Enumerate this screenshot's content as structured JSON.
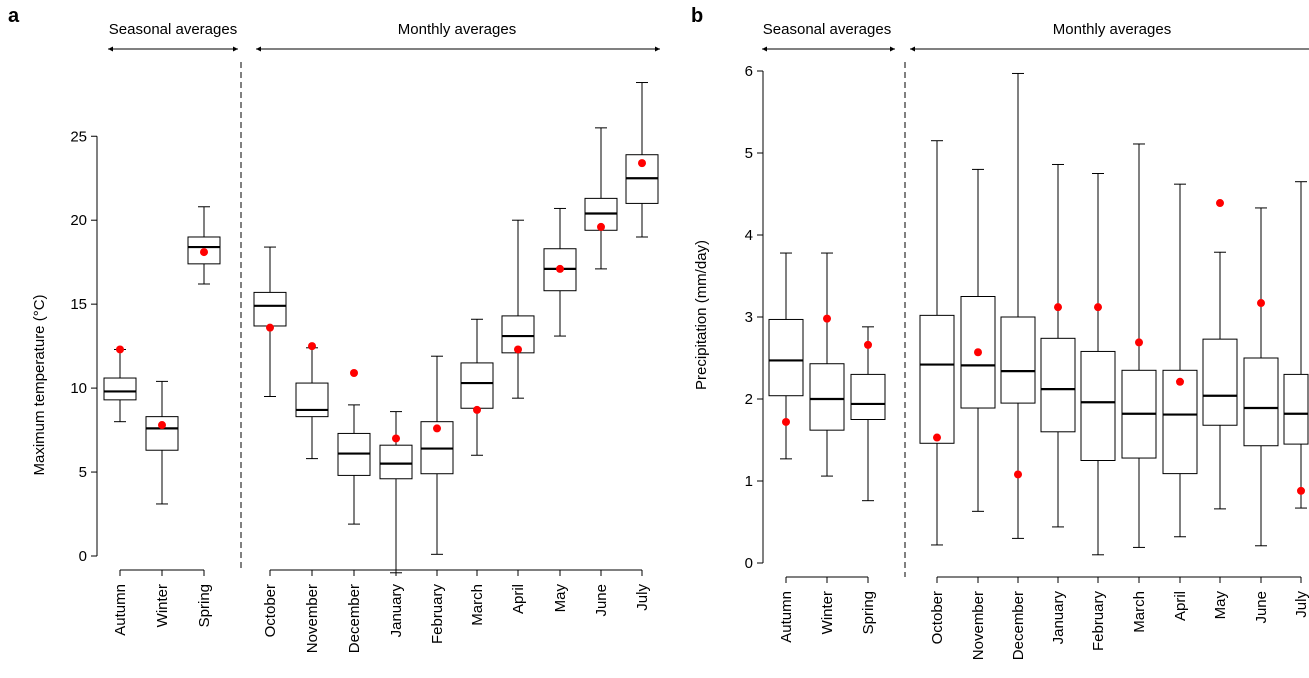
{
  "chart_data": [
    {
      "type": "box",
      "panel_label": "a",
      "section_labels": {
        "seasonal": "Seasonal averages",
        "monthly": "Monthly averages"
      },
      "ylabel": "Maximum temperature (°C)",
      "xlabel": "",
      "ylim": [
        0,
        28
      ],
      "yticks": [
        0,
        5,
        10,
        15,
        20,
        25
      ],
      "grid": false,
      "marker_color": "#ff0000",
      "categories": [
        "Autumn",
        "Winter",
        "Spring",
        "October",
        "November",
        "December",
        "January",
        "February",
        "March",
        "April",
        "May",
        "June",
        "July"
      ],
      "boxes": [
        {
          "min": 8.0,
          "q1": 9.3,
          "median": 9.8,
          "q3": 10.6,
          "max": 12.3,
          "point": 12.3
        },
        {
          "min": 3.1,
          "q1": 6.3,
          "median": 7.6,
          "q3": 8.3,
          "max": 10.4,
          "point": 7.8
        },
        {
          "min": 16.2,
          "q1": 17.4,
          "median": 18.4,
          "q3": 19.0,
          "max": 20.8,
          "point": 18.1
        },
        {
          "min": 9.5,
          "q1": 13.7,
          "median": 14.9,
          "q3": 15.7,
          "max": 18.4,
          "point": 13.6
        },
        {
          "min": 5.8,
          "q1": 8.3,
          "median": 8.7,
          "q3": 10.3,
          "max": 12.4,
          "point": 12.5
        },
        {
          "min": 1.9,
          "q1": 4.8,
          "median": 6.1,
          "q3": 7.3,
          "max": 9.0,
          "point": 10.9
        },
        {
          "min": -1.0,
          "q1": 4.6,
          "median": 5.5,
          "q3": 6.6,
          "max": 8.6,
          "point": 7.0
        },
        {
          "min": 0.1,
          "q1": 4.9,
          "median": 6.4,
          "q3": 8.0,
          "max": 11.9,
          "point": 7.6
        },
        {
          "min": 6.0,
          "q1": 8.8,
          "median": 10.3,
          "q3": 11.5,
          "max": 14.1,
          "point": 8.7
        },
        {
          "min": 9.4,
          "q1": 12.1,
          "median": 13.1,
          "q3": 14.3,
          "max": 20.0,
          "point": 12.3
        },
        {
          "min": 13.1,
          "q1": 15.8,
          "median": 17.1,
          "q3": 18.3,
          "max": 20.7,
          "point": 17.1
        },
        {
          "min": 17.1,
          "q1": 19.4,
          "median": 20.4,
          "q3": 21.3,
          "max": 25.5,
          "point": 19.6
        },
        {
          "min": 19.0,
          "q1": 21.0,
          "median": 22.5,
          "q3": 23.9,
          "max": 28.2,
          "point": 23.4
        }
      ]
    },
    {
      "type": "box",
      "panel_label": "b",
      "section_labels": {
        "seasonal": "Seasonal averages",
        "monthly": "Monthly averages"
      },
      "ylabel": "Precipitation (mm/day)",
      "xlabel": "",
      "ylim": [
        0,
        6
      ],
      "yticks": [
        0,
        1,
        2,
        3,
        4,
        5,
        6
      ],
      "grid": false,
      "marker_color": "#ff0000",
      "categories": [
        "Autumn",
        "Winter",
        "Spring",
        "October",
        "November",
        "December",
        "January",
        "February",
        "March",
        "April",
        "May",
        "June",
        "July"
      ],
      "boxes": [
        {
          "min": 1.27,
          "q1": 2.04,
          "median": 2.47,
          "q3": 2.97,
          "max": 3.78,
          "point": 1.72
        },
        {
          "min": 1.06,
          "q1": 1.62,
          "median": 2.0,
          "q3": 2.43,
          "max": 3.78,
          "point": 2.98
        },
        {
          "min": 0.76,
          "q1": 1.75,
          "median": 1.94,
          "q3": 2.3,
          "max": 2.88,
          "point": 2.66
        },
        {
          "min": 0.22,
          "q1": 1.46,
          "median": 2.42,
          "q3": 3.02,
          "max": 5.15,
          "point": 1.53
        },
        {
          "min": 0.63,
          "q1": 1.89,
          "median": 2.41,
          "q3": 3.25,
          "max": 4.8,
          "point": 2.57
        },
        {
          "min": 0.3,
          "q1": 1.95,
          "median": 2.34,
          "q3": 3.0,
          "max": 5.97,
          "point": 1.08
        },
        {
          "min": 0.44,
          "q1": 1.6,
          "median": 2.12,
          "q3": 2.74,
          "max": 4.86,
          "point": 3.12
        },
        {
          "min": 0.1,
          "q1": 1.25,
          "median": 1.96,
          "q3": 2.58,
          "max": 4.75,
          "point": 3.12
        },
        {
          "min": 0.19,
          "q1": 1.28,
          "median": 1.82,
          "q3": 2.35,
          "max": 5.11,
          "point": 2.69
        },
        {
          "min": 0.32,
          "q1": 1.09,
          "median": 1.81,
          "q3": 2.35,
          "max": 4.62,
          "point": 2.21
        },
        {
          "min": 0.66,
          "q1": 1.68,
          "median": 2.04,
          "q3": 2.73,
          "max": 3.79,
          "point": 4.39
        },
        {
          "min": 0.21,
          "q1": 1.43,
          "median": 1.89,
          "q3": 2.5,
          "max": 4.33,
          "point": 3.17
        },
        {
          "min": 0.67,
          "q1": 1.45,
          "median": 1.82,
          "q3": 2.3,
          "max": 4.65,
          "point": 0.88
        }
      ]
    }
  ]
}
